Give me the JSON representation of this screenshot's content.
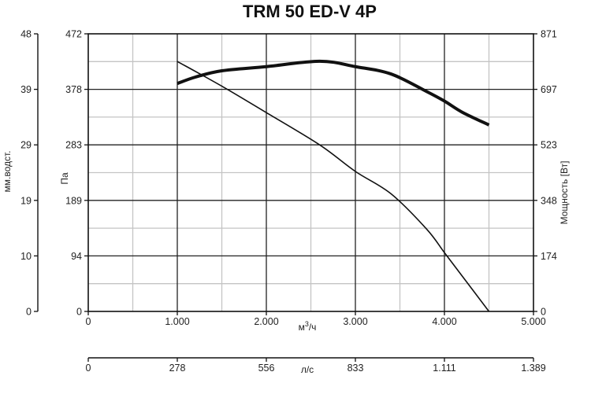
{
  "chart_data": {
    "type": "line",
    "title": "TRM 50 ED-V 4P",
    "xlabel": "m³/ч",
    "xlabel_parts": {
      "base": "м",
      "sup": "3",
      "rest": "/ч"
    },
    "xlim": [
      0,
      5000
    ],
    "x_ticks": [
      "0",
      "1.000",
      "2.000",
      "3.000",
      "4.000",
      "5.000"
    ],
    "x2label": "л/с",
    "x2_ticks": [
      "0",
      "278",
      "556",
      "833",
      "1.111",
      "1.389"
    ],
    "ylabel": "Па",
    "ylim": [
      0,
      472
    ],
    "y_ticks": [
      "0",
      "94",
      "189",
      "283",
      "378",
      "472"
    ],
    "y_outer_label": "мм.водст.",
    "y_outer_ticks": [
      "0",
      "10",
      "19",
      "29",
      "39",
      "48"
    ],
    "y2label": "Мощность [Вт]",
    "y2lim": [
      0,
      871
    ],
    "y2_ticks": [
      "0",
      "174",
      "348",
      "523",
      "697",
      "871"
    ],
    "grid": true,
    "series": [
      {
        "role": "pressure",
        "axis": "left",
        "stroke": "#111111",
        "width": 1.6,
        "x": [
          1000,
          1500,
          2000,
          2600,
          3000,
          3400,
          3800,
          4000,
          4200,
          4500
        ],
        "y": [
          425,
          383,
          338,
          283,
          238,
          200,
          140,
          100,
          60,
          0
        ]
      },
      {
        "role": "power",
        "axis": "right",
        "stroke": "#111111",
        "width": 4,
        "x": [
          1000,
          1200,
          1500,
          2000,
          2600,
          3000,
          3400,
          3800,
          4000,
          4200,
          4500
        ],
        "y": [
          715,
          735,
          755,
          768,
          785,
          768,
          745,
          690,
          660,
          625,
          585
        ]
      }
    ]
  }
}
